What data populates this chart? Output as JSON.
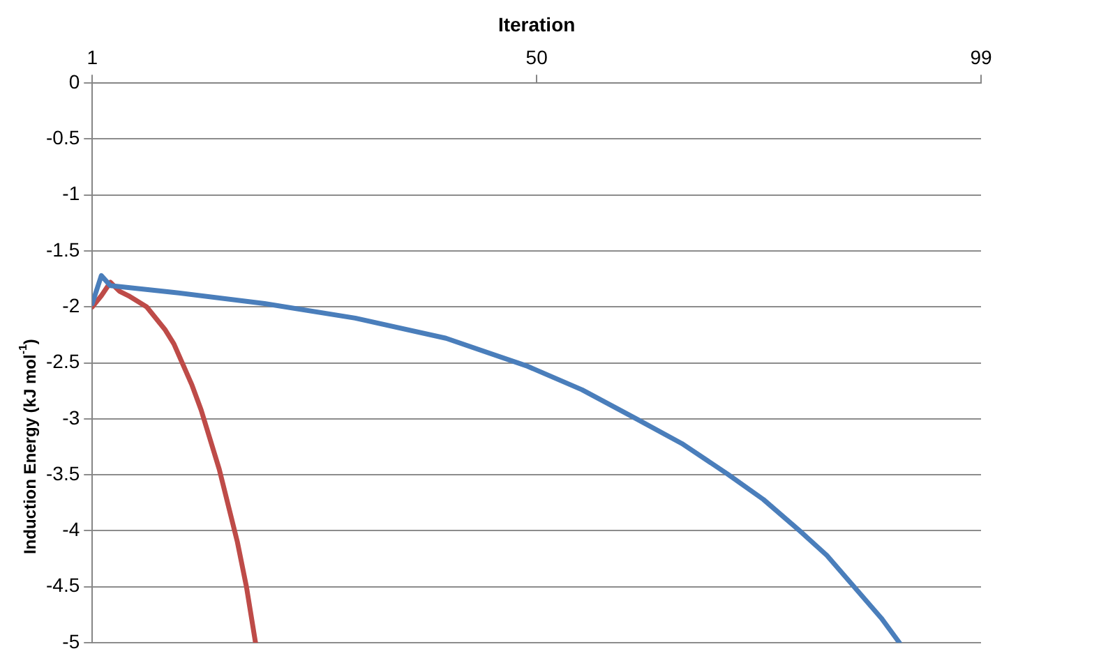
{
  "chart_data": {
    "type": "line",
    "xlabel": "Iteration",
    "ylabel": "Induction Energy (kJ mol$^{-1}$)",
    "xlim": [
      1,
      99
    ],
    "xticks": [
      1,
      50,
      99
    ],
    "ylim": [
      -5,
      0
    ],
    "yticks": [
      -5,
      -4.5,
      -4,
      -3.5,
      -3,
      -2.5,
      -2,
      -1.5,
      -1,
      -0.5,
      0
    ],
    "grid": "y",
    "marker": "none",
    "line_style": "solid",
    "series": [
      {
        "color": "#4a7ebb",
        "x": [
          1,
          2,
          3,
          10,
          20,
          30,
          40,
          49,
          55,
          61,
          66,
          71,
          75,
          79,
          82,
          85,
          88,
          90
        ],
        "values": [
          -1.97,
          -1.72,
          -1.81,
          -1.87,
          -1.97,
          -2.1,
          -2.28,
          -2.53,
          -2.74,
          -3.0,
          -3.22,
          -3.49,
          -3.72,
          -4.0,
          -4.22,
          -4.5,
          -4.78,
          -5.0
        ]
      },
      {
        "color": "#be4b48",
        "x": [
          1,
          2,
          3,
          4,
          5,
          7,
          9,
          10,
          12,
          13,
          15,
          17,
          18,
          19
        ],
        "values": [
          -2.0,
          -1.9,
          -1.78,
          -1.86,
          -1.9,
          -2.0,
          -2.2,
          -2.33,
          -2.7,
          -2.92,
          -3.45,
          -4.1,
          -4.5,
          -5.0
        ]
      }
    ]
  }
}
